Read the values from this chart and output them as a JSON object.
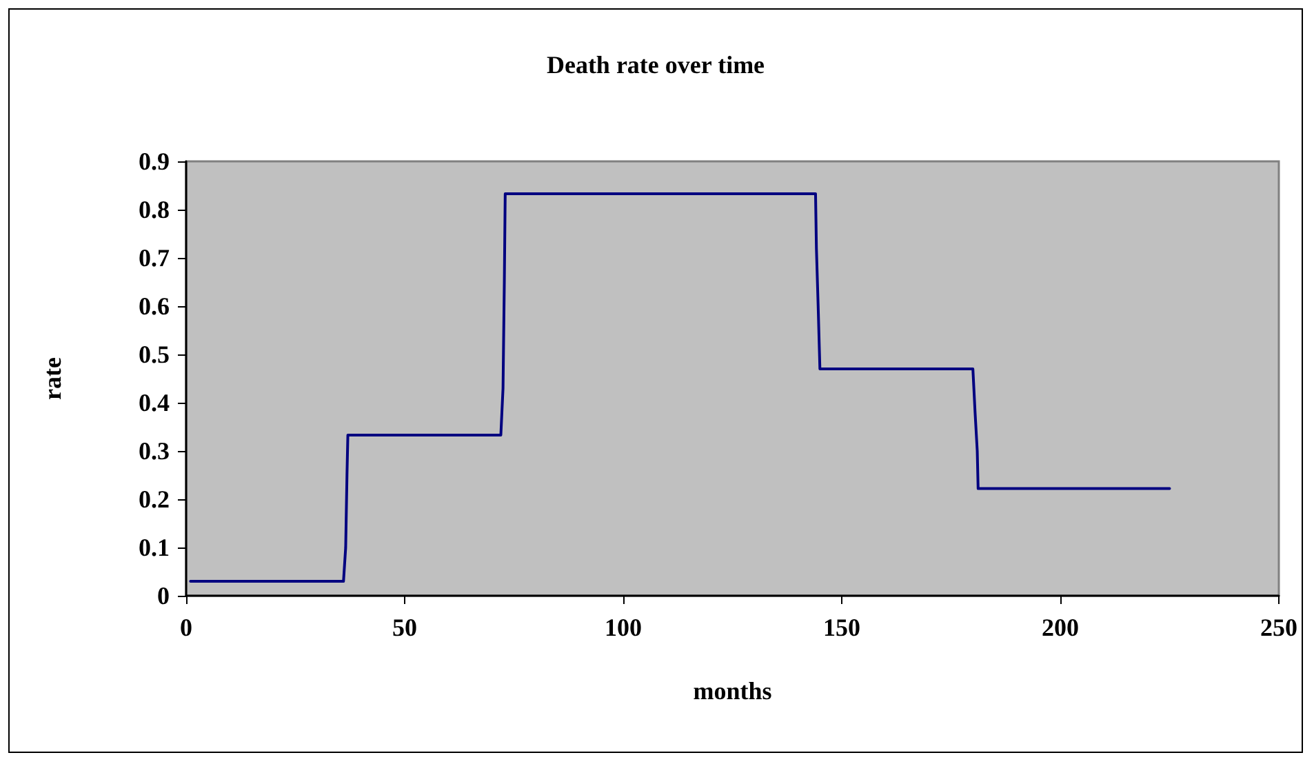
{
  "chart_data": {
    "type": "line",
    "title": "Death rate over time",
    "xlabel": "months",
    "ylabel": "rate",
    "x": [
      1,
      36,
      36.5,
      36.8,
      37,
      72,
      72.5,
      72.8,
      73,
      144,
      144.2,
      144.6,
      145,
      180,
      180.5,
      181,
      181.2,
      225
    ],
    "series": [
      {
        "color": "#000080",
        "values": [
          0.03,
          0.03,
          0.1,
          0.25,
          0.333,
          0.333,
          0.43,
          0.65,
          0.833,
          0.833,
          0.72,
          0.6,
          0.47,
          0.47,
          0.38,
          0.3,
          0.222,
          0.222
        ]
      }
    ],
    "xlim": [
      0,
      250
    ],
    "xticks": [
      0,
      50,
      100,
      150,
      200,
      250
    ],
    "ylim": [
      0,
      0.9
    ],
    "yticks": [
      0,
      0.1,
      0.2,
      0.3,
      0.4,
      0.5,
      0.6,
      0.7,
      0.8,
      0.9
    ],
    "grid": false,
    "marker": "none",
    "line_style": "solid"
  }
}
